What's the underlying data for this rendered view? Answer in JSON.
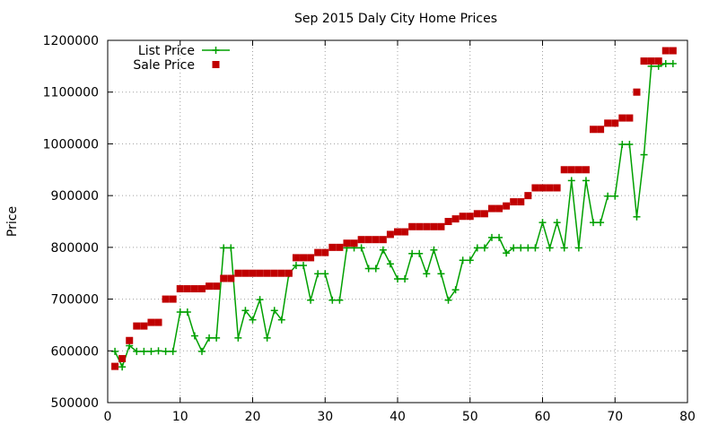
{
  "chart_data": {
    "type": "scatter",
    "title": "Sep 2015 Daly City Home Prices",
    "xlabel": "",
    "ylabel": "Price",
    "xlim": [
      0,
      80
    ],
    "ylim": [
      500000,
      1200000
    ],
    "x_ticks": [
      0,
      10,
      20,
      30,
      40,
      50,
      60,
      70,
      80
    ],
    "y_ticks": [
      500000,
      600000,
      700000,
      800000,
      900000,
      1000000,
      1100000,
      1200000
    ],
    "grid": true,
    "legend_position": "top-left",
    "series": [
      {
        "name": "List Price",
        "style": "linespoints",
        "color": "#00a000",
        "marker": "plus",
        "x": [
          1,
          2,
          3,
          4,
          5,
          6,
          7,
          8,
          9,
          10,
          11,
          12,
          13,
          14,
          15,
          16,
          17,
          18,
          19,
          20,
          21,
          22,
          23,
          24,
          25,
          26,
          27,
          28,
          29,
          30,
          31,
          32,
          33,
          34,
          35,
          36,
          37,
          38,
          39,
          40,
          41,
          42,
          43,
          44,
          45,
          46,
          47,
          48,
          49,
          50,
          51,
          52,
          53,
          54,
          55,
          56,
          57,
          58,
          59,
          60,
          61,
          62,
          63,
          64,
          65,
          66,
          67,
          68,
          69,
          70,
          71,
          72,
          73,
          74,
          75,
          76,
          77,
          78
        ],
        "y": [
          599000,
          569000,
          610000,
          599000,
          599000,
          599000,
          600000,
          599000,
          599000,
          675000,
          675000,
          629000,
          599000,
          625000,
          625000,
          799000,
          799000,
          625000,
          678000,
          660000,
          699000,
          625000,
          678000,
          660000,
          749000,
          765000,
          765000,
          698000,
          749000,
          749000,
          698000,
          698000,
          799000,
          799000,
          799000,
          759000,
          759000,
          795000,
          768000,
          739000,
          739000,
          788000,
          788000,
          749000,
          795000,
          749000,
          698000,
          718000,
          775000,
          775000,
          799000,
          799000,
          819000,
          819000,
          789000,
          799000,
          799000,
          799000,
          799000,
          848000,
          799000,
          848000,
          799000,
          929000,
          799000,
          929000,
          848000,
          848000,
          899000,
          899000,
          999000,
          999000,
          859000,
          979000,
          1150000,
          1150000,
          1155000,
          1155000
        ]
      },
      {
        "name": "Sale Price",
        "style": "points",
        "color": "#c00000",
        "marker": "square",
        "x": [
          1,
          2,
          3,
          4,
          5,
          6,
          7,
          8,
          9,
          10,
          11,
          12,
          13,
          14,
          15,
          16,
          17,
          18,
          19,
          20,
          21,
          22,
          23,
          24,
          25,
          26,
          27,
          28,
          29,
          30,
          31,
          32,
          33,
          34,
          35,
          36,
          37,
          38,
          39,
          40,
          41,
          42,
          43,
          44,
          45,
          46,
          47,
          48,
          49,
          50,
          51,
          52,
          53,
          54,
          55,
          56,
          57,
          58,
          59,
          60,
          61,
          62,
          63,
          64,
          65,
          66,
          67,
          68,
          69,
          70,
          71,
          72,
          73,
          74,
          75,
          76,
          77,
          78
        ],
        "y": [
          570000,
          585000,
          620000,
          648000,
          648000,
          655000,
          655000,
          700000,
          700000,
          720000,
          720000,
          720000,
          720000,
          725000,
          725000,
          740000,
          740000,
          750000,
          750000,
          750000,
          750000,
          750000,
          750000,
          750000,
          750000,
          780000,
          780000,
          780000,
          790000,
          790000,
          800000,
          800000,
          808000,
          808000,
          815000,
          815000,
          815000,
          815000,
          825000,
          830000,
          830000,
          840000,
          840000,
          840000,
          840000,
          840000,
          850000,
          855000,
          860000,
          860000,
          865000,
          865000,
          875000,
          875000,
          880000,
          888000,
          888000,
          900000,
          915000,
          915000,
          915000,
          915000,
          950000,
          950000,
          950000,
          950000,
          1028000,
          1028000,
          1040000,
          1040000,
          1050000,
          1050000,
          1100000,
          1160000,
          1160000,
          1160000,
          1180000,
          1180000
        ]
      }
    ]
  }
}
